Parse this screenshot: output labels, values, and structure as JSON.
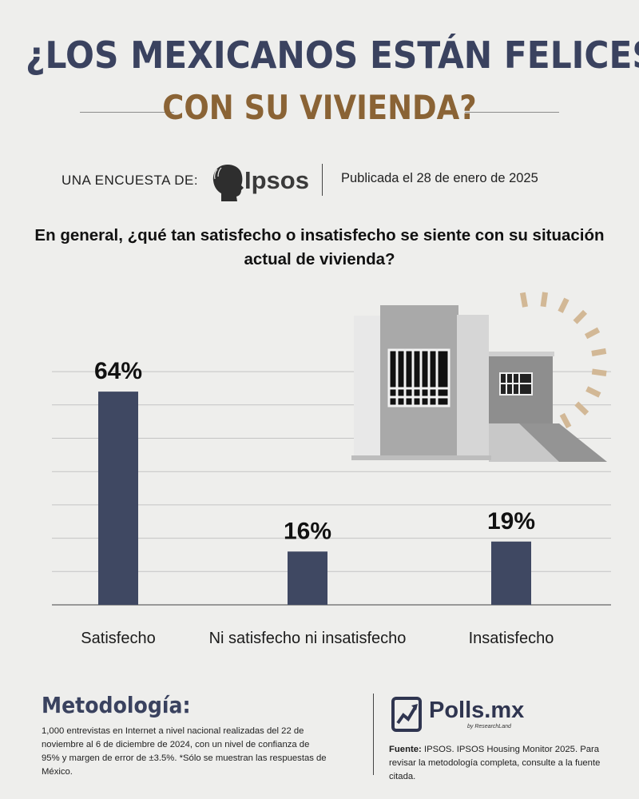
{
  "header": {
    "title_line1": "¿LOS MEXICANOS ESTÁN FELICES",
    "title_line2": "CON SU VIVIENDA?",
    "by_label": "UNA ENCUESTA DE:",
    "brand": "Ipsos",
    "published": "Publicada el 28 de enero de 2025"
  },
  "question": "En general, ¿qué tan satisfecho o insatisfecho se siente con su situación actual de vivienda?",
  "colors": {
    "title_navy": "#3a425f",
    "title_brown": "#8a6335",
    "bar": "#3f4862",
    "sun_rays": "#d2b896"
  },
  "chart_data": {
    "type": "bar",
    "categories": [
      "Satisfecho",
      "Ni satisfecho ni insatisfecho",
      "Insatisfecho"
    ],
    "values": [
      64,
      16,
      19
    ],
    "data_labels": [
      "64%",
      "16%",
      "19%"
    ],
    "ylim": [
      0,
      70
    ],
    "grid": true,
    "legend": "none"
  },
  "footer": {
    "methodology_title": "Metodología:",
    "methodology_text": "1,000 entrevistas en Internet a nivel nacional realizadas del 22 de noviembre al 6 de diciembre de 2024, con un nivel de confianza de 95% y margen de error de ±3.5%. *Sólo se muestran las respuestas de México.",
    "logo_name": "Polls.mx",
    "logo_sub": "by ResearchLand",
    "source_label": "Fuente:",
    "source_text": "IPSOS. IPSOS Housing Monitor 2025. Para revisar la metodología completa, consulte a la fuente citada."
  }
}
